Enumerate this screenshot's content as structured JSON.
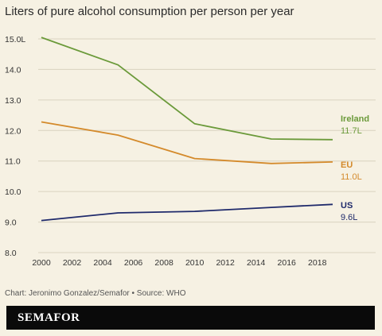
{
  "title": "Liters of pure alcohol consumption per person per year",
  "credit": "Chart: Jeronimo Gonzalez/Semafor • Source: WHO",
  "brand": "SEMAFOR",
  "colors": {
    "background": "#f6f1e3",
    "ireland": "#6b9a3a",
    "eu": "#d48a2b",
    "us": "#1f2a6b",
    "grid": "#d9d2c0"
  },
  "chart_data": {
    "type": "line",
    "title": "Liters of pure alcohol consumption per person per year",
    "xlabel": "",
    "ylabel": "",
    "xlim": [
      2000,
      2019
    ],
    "ylim": [
      8.0,
      15.0
    ],
    "grid": true,
    "x_ticks": [
      "2000",
      "2002",
      "2004",
      "2006",
      "2008",
      "2010",
      "2012",
      "2014",
      "2016",
      "2018"
    ],
    "y_ticks": [
      "15.0L",
      "14.0",
      "13.0",
      "12.0",
      "11.0",
      "10.0",
      "9.0",
      "8.0"
    ],
    "series": [
      {
        "name": "Ireland",
        "value_label": "11.7L",
        "color": "#6b9a3a",
        "x": [
          2000,
          2005,
          2010,
          2015,
          2019
        ],
        "y": [
          15.05,
          14.15,
          12.22,
          11.72,
          11.7
        ]
      },
      {
        "name": "EU",
        "value_label": "11.0L",
        "color": "#d48a2b",
        "x": [
          2000,
          2005,
          2010,
          2015,
          2019
        ],
        "y": [
          12.28,
          11.85,
          11.08,
          10.92,
          10.97
        ]
      },
      {
        "name": "US",
        "value_label": "9.6L",
        "color": "#1f2a6b",
        "x": [
          2000,
          2005,
          2010,
          2015,
          2019
        ],
        "y": [
          9.05,
          9.3,
          9.35,
          9.48,
          9.58
        ]
      }
    ]
  }
}
